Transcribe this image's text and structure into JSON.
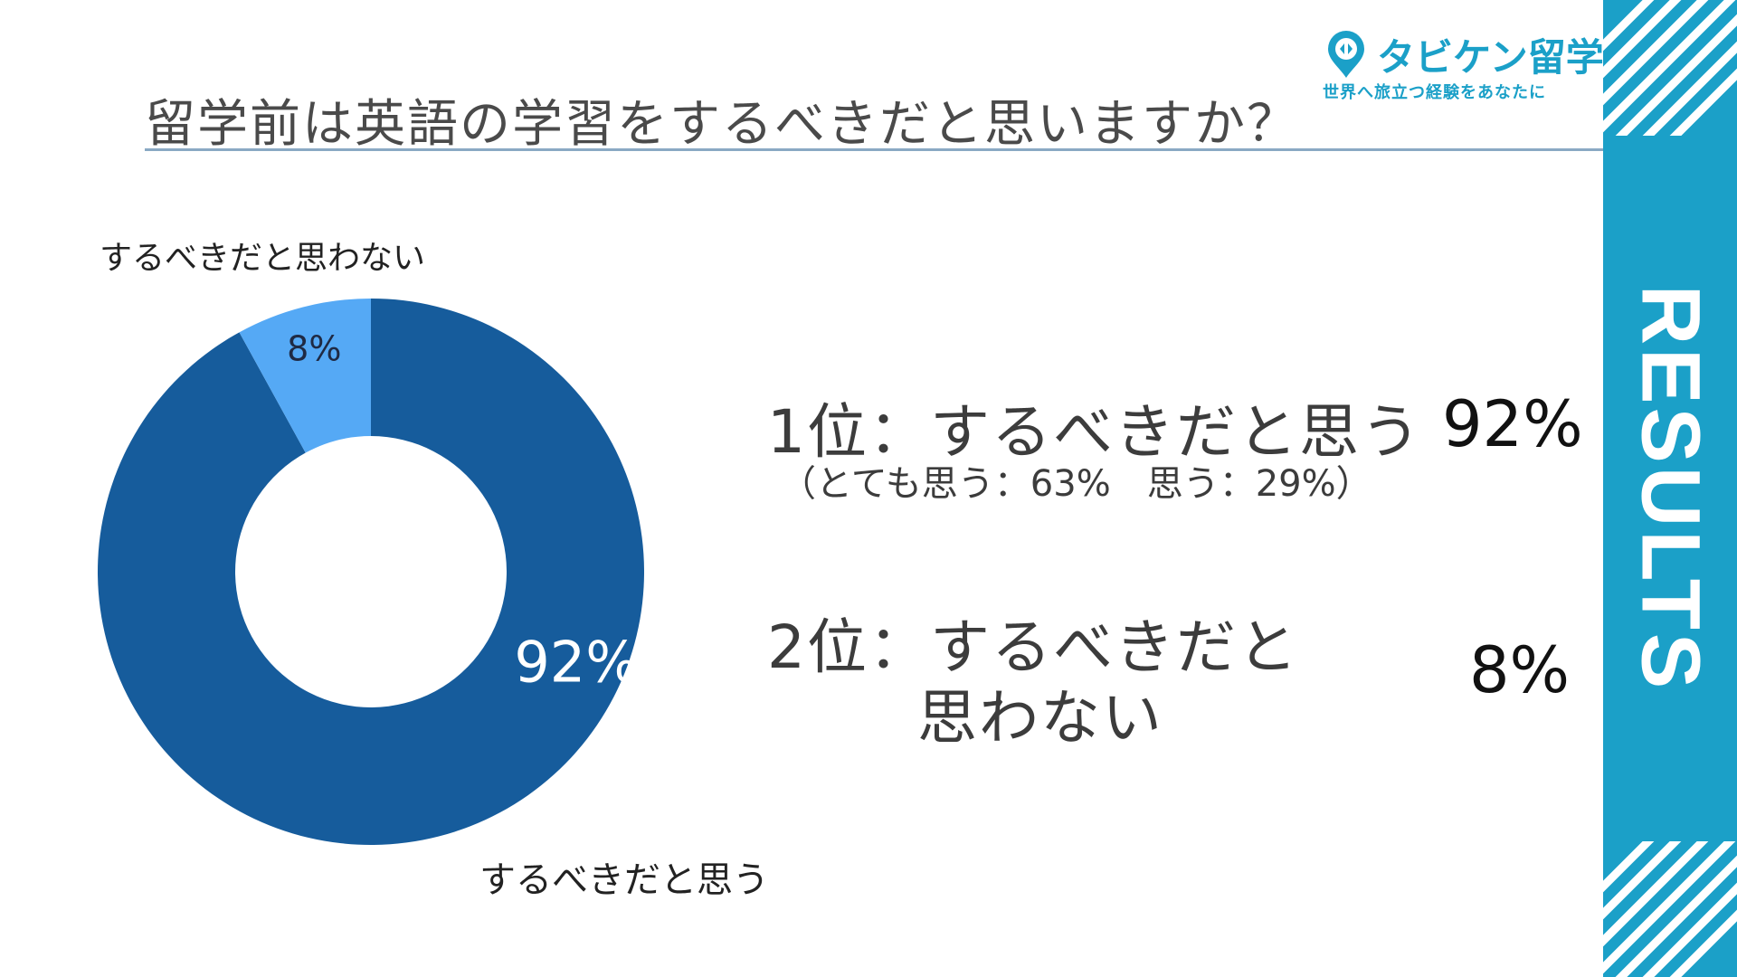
{
  "title": "留学前は英語の学習をするべきだと思いますか？",
  "logo": {
    "name": "タビケン留学",
    "tagline": "世界へ旅立つ経験をあなたに",
    "icon": "map-pin-icon"
  },
  "sidebar": {
    "label": "RESULTS",
    "color": "#1ba0c8"
  },
  "chart_data": {
    "type": "pie",
    "donut": true,
    "slices": [
      {
        "label": "するべきだと思う",
        "value": 92,
        "display": "92%",
        "color": "#165c9c"
      },
      {
        "label": "するべきだと思わない",
        "value": 8,
        "display": "8%",
        "color": "#55a9f5"
      }
    ]
  },
  "ranking": {
    "first": {
      "label": "1位：するべきだと思う",
      "detail": "（とても思う：63%　思う：29%）",
      "percent": "92%"
    },
    "second": {
      "label_line1": "2位：するべきだと",
      "label_line2": "思わない",
      "percent": "8%"
    }
  }
}
